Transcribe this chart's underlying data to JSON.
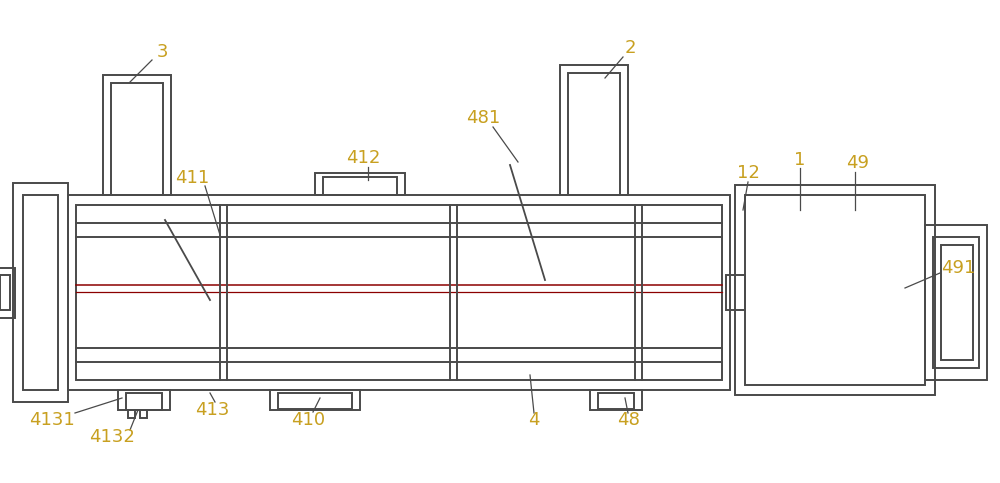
{
  "bg_color": "#ffffff",
  "line_color": "#4a4a4a",
  "red_color": "#8b0000",
  "label_color": "#c8a020",
  "lw": 1.4,
  "fig_w": 10.0,
  "fig_h": 4.83
}
